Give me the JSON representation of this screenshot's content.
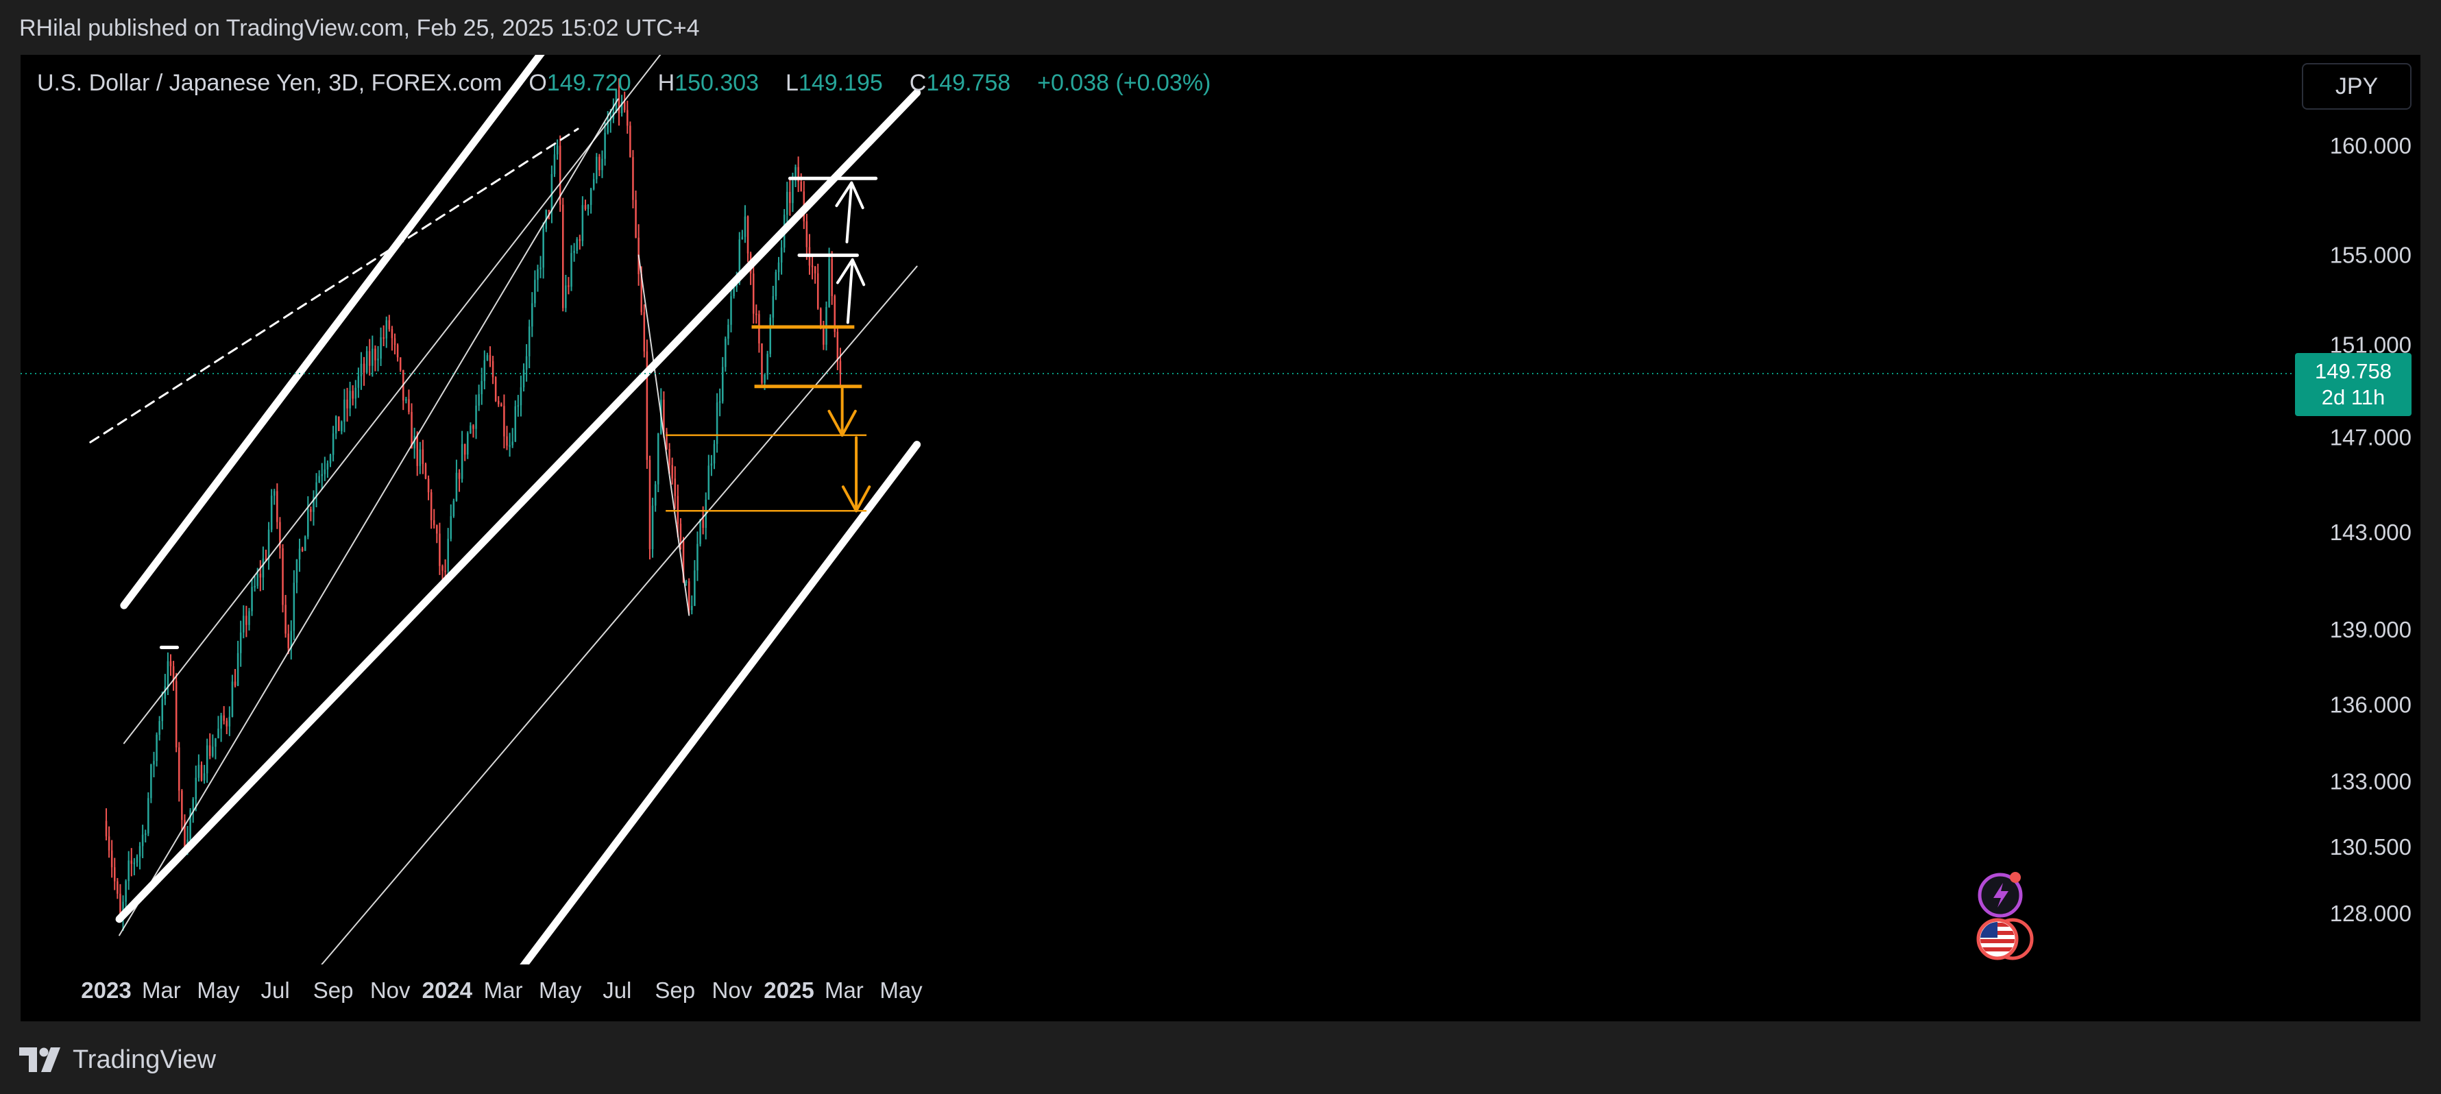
{
  "header": {
    "published": "RHilal published on TradingView.com, Feb 25, 2025 15:02 UTC+4"
  },
  "legend": {
    "symbol": "U.S. Dollar / Japanese Yen, 3D, FOREX.com",
    "o_label": "O",
    "o_value": "149.720",
    "h_label": "H",
    "h_value": "150.303",
    "l_label": "L",
    "l_value": "149.195",
    "c_label": "C",
    "c_value": "149.758",
    "change": "+0.038 (+0.03%)"
  },
  "currency_button": "JPY",
  "last_price": {
    "value": "149.758",
    "countdown": "2d 11h"
  },
  "footer": {
    "brand": "TradingView"
  },
  "icons": [
    "tradingview-logo-icon",
    "lightning-alert-icon",
    "us-flag-events-icon"
  ],
  "colors": {
    "up": "#26a69a",
    "down": "#ef5350",
    "drawing": "#ffffff",
    "level": "#f59e0b",
    "badge": "#089981"
  },
  "chart_data": {
    "type": "candlestick",
    "y_scale": "log",
    "y_ticks": [
      "160.000",
      "155.000",
      "151.000",
      "147.000",
      "143.000",
      "139.000",
      "136.000",
      "133.000",
      "130.500",
      "128.000"
    ],
    "x_ticks": [
      "2023",
      "Mar",
      "May",
      "Jul",
      "Sep",
      "Nov",
      "2024",
      "Mar",
      "May",
      "Jul",
      "Sep",
      "Nov",
      "2025",
      "Mar",
      "May"
    ],
    "x_tick_bold": [
      true,
      false,
      false,
      false,
      false,
      false,
      true,
      false,
      false,
      false,
      false,
      false,
      true,
      false,
      false
    ],
    "path": [
      [
        "2023-01-01",
        131.5
      ],
      [
        "2023-01-16",
        127.6
      ],
      [
        "2023-01-25",
        129.5
      ],
      [
        "2023-02-10",
        131.0
      ],
      [
        "2023-03-04",
        137.0
      ],
      [
        "2023-03-12",
        137.6
      ],
      [
        "2023-03-24",
        130.5
      ],
      [
        "2023-04-14",
        133.8
      ],
      [
        "2023-05-10",
        135.5
      ],
      [
        "2023-05-30",
        139.4
      ],
      [
        "2023-06-20",
        142.0
      ],
      [
        "2023-06-30",
        144.8
      ],
      [
        "2023-07-14",
        138.3
      ],
      [
        "2023-07-28",
        142.5
      ],
      [
        "2023-08-12",
        145.0
      ],
      [
        "2023-08-30",
        146.8
      ],
      [
        "2023-09-30",
        149.6
      ],
      [
        "2023-10-31",
        151.8
      ],
      [
        "2023-11-22",
        147.3
      ],
      [
        "2023-12-10",
        145.0
      ],
      [
        "2023-12-28",
        140.8
      ],
      [
        "2024-01-14",
        145.8
      ],
      [
        "2024-02-14",
        150.3
      ],
      [
        "2024-03-08",
        146.8
      ],
      [
        "2024-03-28",
        151.3
      ],
      [
        "2024-04-29",
        160.2
      ],
      [
        "2024-05-04",
        152.8
      ],
      [
        "2024-05-29",
        157.5
      ],
      [
        "2024-06-30",
        161.9
      ],
      [
        "2024-07-10",
        161.6
      ],
      [
        "2024-07-31",
        150.0
      ],
      [
        "2024-08-05",
        141.7
      ],
      [
        "2024-08-16",
        148.5
      ],
      [
        "2024-08-30",
        145.0
      ],
      [
        "2024-09-16",
        139.6
      ],
      [
        "2024-09-30",
        143.5
      ],
      [
        "2024-10-31",
        152.5
      ],
      [
        "2024-11-15",
        156.7
      ],
      [
        "2024-12-03",
        149.4
      ],
      [
        "2024-12-31",
        157.5
      ],
      [
        "2025-01-10",
        158.7
      ],
      [
        "2025-02-07",
        151.2
      ],
      [
        "2025-02-12",
        154.8
      ],
      [
        "2025-02-25",
        149.76
      ]
    ],
    "channel_lines": [
      {
        "name": "upper-channel-line",
        "p1": [
          "2023-01-20",
          140.0
        ],
        "p2": [
          "2024-08-15",
          172.0
        ],
        "weight": "bold"
      },
      {
        "name": "middle-channel-line",
        "p1": [
          "2023-01-15",
          127.8
        ],
        "p2": [
          "2025-05-18",
          162.5
        ],
        "weight": "bold"
      },
      {
        "name": "lower-channel-line",
        "p1": [
          "2024-01-14",
          123.0
        ],
        "p2": [
          "2025-05-18",
          146.7
        ],
        "weight": "bold"
      },
      {
        "name": "inner-channel-line",
        "p1": [
          "2023-01-20",
          134.5
        ],
        "p2": [
          "2024-10-02",
          167.0
        ],
        "weight": "thin"
      },
      {
        "name": "lower-inner-channel-line",
        "p1": [
          "2023-07-10",
          124.5
        ],
        "p2": [
          "2025-05-18",
          154.5
        ],
        "weight": "thin"
      },
      {
        "name": "dashed-extension-line",
        "p1": [
          "2022-12-15",
          146.8
        ],
        "p2": [
          "2024-05-20",
          160.8
        ],
        "weight": "dashed"
      },
      {
        "name": "support-trendline",
        "p1": [
          "2023-01-15",
          127.2
        ],
        "p2": [
          "2024-07-02",
          162.2
        ],
        "weight": "thin"
      },
      {
        "name": "drop-trendline",
        "p1": [
          "2024-07-24",
          155.0
        ],
        "p2": [
          "2024-09-16",
          139.6
        ],
        "weight": "thin"
      },
      {
        "name": "march-top-marker",
        "p1": [
          "2023-03-01",
          138.3
        ],
        "p2": [
          "2023-03-18",
          138.3
        ],
        "weight": "medium"
      }
    ],
    "resistance_lines": [
      {
        "name": "resistance-line-upper",
        "from": "2025-01-02",
        "to": "2025-04-04",
        "price": 158.5
      },
      {
        "name": "resistance-line-lower",
        "from": "2025-01-12",
        "to": "2025-03-15",
        "price": 155.0
      }
    ],
    "support_levels": [
      {
        "name": "support-level-151",
        "from": "2024-11-22",
        "to": "2025-03-12",
        "price": 151.8,
        "weight": "medium"
      },
      {
        "name": "support-level-149",
        "from": "2024-11-25",
        "to": "2025-03-20",
        "price": 149.2,
        "weight": "medium"
      },
      {
        "name": "support-level-147",
        "from": "2024-08-22",
        "to": "2025-03-25",
        "price": 147.1,
        "weight": "thin"
      },
      {
        "name": "support-level-144",
        "from": "2024-08-22",
        "to": "2025-03-25",
        "price": 143.9,
        "weight": "thin"
      }
    ],
    "arrows": [
      {
        "name": "up-arrow-upper",
        "from": [
          "2025-03-04",
          155.6
        ],
        "to": [
          "2025-03-09",
          158.3
        ],
        "color": "white"
      },
      {
        "name": "up-arrow-lower",
        "from": [
          "2025-03-05",
          152.0
        ],
        "to": [
          "2025-03-10",
          154.8
        ],
        "color": "white"
      },
      {
        "name": "down-arrow-first",
        "from": [
          "2025-02-27",
          149.1
        ],
        "to": [
          "2025-02-27",
          147.1
        ],
        "color": "orange"
      },
      {
        "name": "down-arrow-second",
        "from": [
          "2025-03-14",
          147.0
        ],
        "to": [
          "2025-03-14",
          143.9
        ],
        "color": "orange"
      }
    ]
  }
}
